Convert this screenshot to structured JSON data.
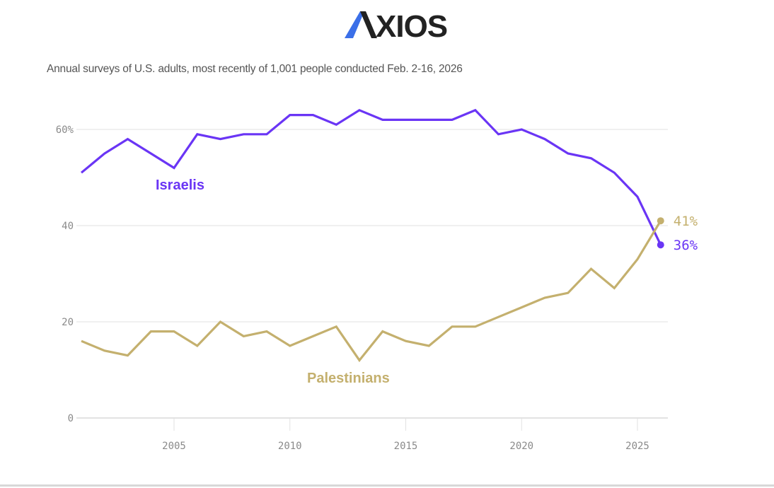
{
  "brand": {
    "name": "AXIOS",
    "accent_color": "#3b6fe8",
    "text_color": "#222222"
  },
  "subtitle": "Annual surveys of U.S. adults, most recently of 1,001 people conducted Feb. 2-16, 2026",
  "chart_data": {
    "type": "line",
    "title": "",
    "subtitle": "Annual surveys of U.S. adults, most recently of 1,001 people conducted Feb. 2-16, 2026",
    "xlabel": "",
    "ylabel": "",
    "xlim": [
      2001,
      2026
    ],
    "ylim": [
      0,
      65
    ],
    "grid": true,
    "x": [
      2001,
      2002,
      2003,
      2004,
      2005,
      2006,
      2007,
      2008,
      2009,
      2010,
      2011,
      2012,
      2013,
      2014,
      2015,
      2016,
      2017,
      2018,
      2019,
      2020,
      2021,
      2022,
      2023,
      2024,
      2025,
      2026
    ],
    "x_ticks": [
      2005,
      2010,
      2015,
      2020,
      2025
    ],
    "x_tick_labels": [
      "2005",
      "2010",
      "2015",
      "2020",
      "2025"
    ],
    "y_ticks": [
      0,
      20,
      40,
      60
    ],
    "y_tick_labels": [
      "0",
      "20",
      "40",
      "60%"
    ],
    "series": [
      {
        "name": "Israelis",
        "color": "#6a35f5",
        "values": [
          51,
          55,
          58,
          55,
          52,
          59,
          58,
          59,
          59,
          63,
          63,
          61,
          64,
          62,
          62,
          62,
          62,
          64,
          59,
          60,
          58,
          55,
          54,
          51,
          46,
          36
        ],
        "end_label": "36%"
      },
      {
        "name": "Palestinians",
        "color": "#c4b06e",
        "values": [
          16,
          14,
          13,
          18,
          18,
          15,
          20,
          17,
          18,
          15,
          17,
          19,
          12,
          18,
          16,
          15,
          19,
          19,
          21,
          23,
          25,
          26,
          31,
          27,
          33,
          41
        ],
        "end_label": "41%"
      }
    ]
  }
}
